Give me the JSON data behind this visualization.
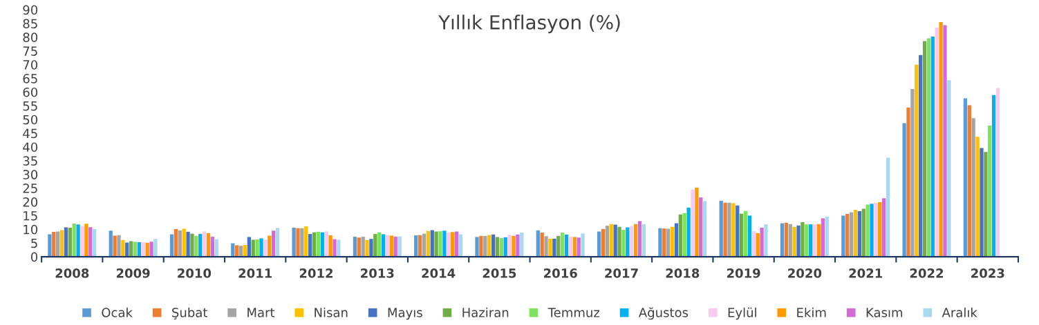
{
  "chart_data": {
    "type": "bar",
    "title": "Yıllık Enflasyon (%)",
    "categories": [
      "2008",
      "2009",
      "2010",
      "2011",
      "2012",
      "2013",
      "2014",
      "2015",
      "2016",
      "2017",
      "2018",
      "2019",
      "2020",
      "2021",
      "2022",
      "2023"
    ],
    "ylim": [
      0,
      90
    ],
    "yticks": [
      0,
      5,
      10,
      15,
      20,
      25,
      30,
      35,
      40,
      45,
      50,
      55,
      60,
      65,
      70,
      75,
      80,
      85,
      90
    ],
    "grid": false,
    "legend": "bottom",
    "series": [
      {
        "name": "Ocak",
        "color": "#5b9bd5",
        "values": [
          8.2,
          9.5,
          8.2,
          4.9,
          10.6,
          7.3,
          7.8,
          7.2,
          9.6,
          9.2,
          10.4,
          20.4,
          12.2,
          15.0,
          48.7,
          57.7
        ]
      },
      {
        "name": "Şubat",
        "color": "#ed7d31",
        "values": [
          9.1,
          7.7,
          10.1,
          4.2,
          10.4,
          7.0,
          7.9,
          7.6,
          8.8,
          10.1,
          10.3,
          19.7,
          12.4,
          15.6,
          54.4,
          55.2
        ]
      },
      {
        "name": "Mart",
        "color": "#a5a5a5",
        "values": [
          9.2,
          7.9,
          9.6,
          4.0,
          10.4,
          7.3,
          8.4,
          7.6,
          7.5,
          11.3,
          10.2,
          19.7,
          11.9,
          16.2,
          61.1,
          50.5
        ]
      },
      {
        "name": "Nisan",
        "color": "#ffc000",
        "values": [
          9.7,
          6.1,
          10.2,
          4.3,
          11.1,
          6.1,
          9.4,
          7.9,
          6.6,
          11.9,
          10.9,
          19.5,
          10.9,
          17.1,
          70.0,
          43.7
        ]
      },
      {
        "name": "Mayıs",
        "color": "#4472c4",
        "values": [
          10.7,
          5.2,
          9.1,
          7.2,
          8.3,
          6.5,
          9.7,
          8.1,
          6.6,
          11.7,
          12.2,
          18.7,
          11.4,
          16.6,
          73.5,
          39.6
        ]
      },
      {
        "name": "Haziran",
        "color": "#70ad47",
        "values": [
          10.6,
          5.7,
          8.4,
          6.2,
          8.9,
          8.3,
          9.2,
          7.2,
          7.6,
          10.9,
          15.4,
          15.7,
          12.6,
          17.5,
          78.6,
          38.2
        ]
      },
      {
        "name": "Temmuz",
        "color": "#7ee35a",
        "values": [
          12.1,
          5.4,
          7.6,
          6.3,
          9.1,
          8.9,
          9.3,
          6.8,
          8.8,
          9.8,
          15.9,
          16.7,
          11.8,
          19.0,
          79.6,
          47.8
        ]
      },
      {
        "name": "Ağustos",
        "color": "#00b0f0",
        "values": [
          11.8,
          5.3,
          8.3,
          6.7,
          8.9,
          8.2,
          9.5,
          7.1,
          8.1,
          10.7,
          17.9,
          15.0,
          11.8,
          19.3,
          80.2,
          58.9
        ]
      },
      {
        "name": "Eylül",
        "color": "#f9c9f0",
        "values": [
          11.1,
          5.3,
          9.2,
          6.2,
          9.2,
          7.9,
          8.9,
          8.0,
          7.3,
          11.2,
          24.5,
          9.3,
          11.8,
          19.6,
          83.5,
          61.5
        ]
      },
      {
        "name": "Ekim",
        "color": "#ff9900",
        "values": [
          12.0,
          5.1,
          8.6,
          7.7,
          7.8,
          7.7,
          9.0,
          7.6,
          7.2,
          11.9,
          25.2,
          8.6,
          11.9,
          19.9,
          85.5,
          null
        ]
      },
      {
        "name": "Kasım",
        "color": "#d36ad6",
        "values": [
          10.8,
          5.5,
          7.3,
          9.5,
          6.4,
          7.3,
          9.2,
          8.1,
          7.0,
          13.0,
          21.6,
          10.6,
          14.0,
          21.3,
          84.4,
          null
        ]
      },
      {
        "name": "Aralık",
        "color": "#a9d8f0",
        "values": [
          10.1,
          6.5,
          6.4,
          10.5,
          6.2,
          7.4,
          8.2,
          8.8,
          8.5,
          11.9,
          20.3,
          11.8,
          14.6,
          36.1,
          64.3,
          null
        ]
      }
    ]
  }
}
